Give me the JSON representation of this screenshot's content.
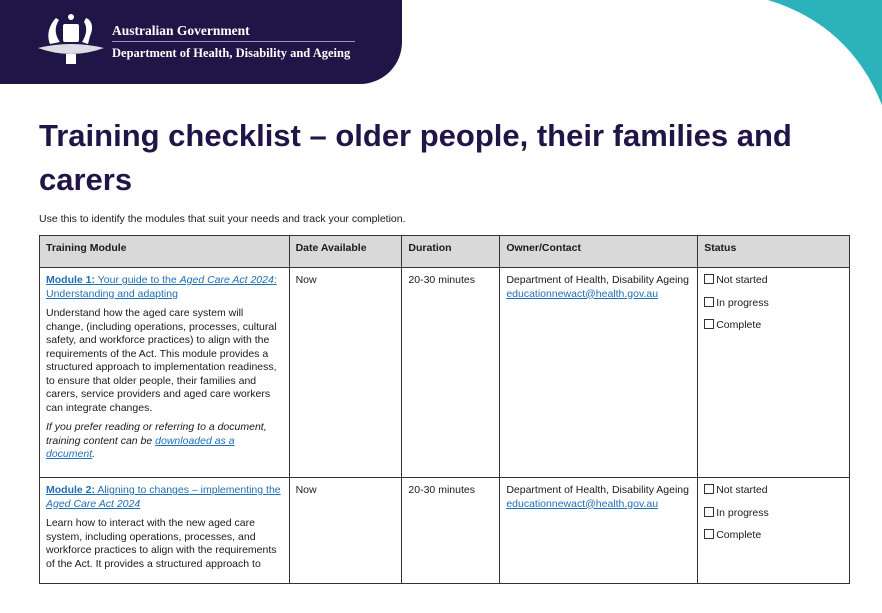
{
  "header": {
    "government": "Australian Government",
    "department": "Department of Health, Disability and Ageing",
    "colors": {
      "banner": "#201547",
      "accent": "#2cb2bb"
    }
  },
  "title": "Training checklist – older people, their families and carers",
  "intro": "Use this to identify the modules that suit your needs and track your completion.",
  "table": {
    "columns": [
      "Training Module",
      "Date Available",
      "Duration",
      "Owner/Contact",
      "Status"
    ],
    "rows": [
      {
        "module_prefix": "Module 1:",
        "module_link_a": " Your guide to the ",
        "module_link_italic": "Aged Care Act 2024",
        "module_link_b": ": Understanding and adapting",
        "description": "Understand how the aged care system will change, (including operations, processes, cultural safety, and workforce practices) to align with the requirements of the Act. This module provides a structured approach to implementation readiness, to ensure that older people, their families and carers, service providers and aged care workers can integrate changes.",
        "note_pre": "If you prefer reading or referring to a document, training content can be ",
        "note_link": "downloaded as a document",
        "note_post": ".",
        "date": "Now",
        "duration": "20-30 minutes",
        "owner": "Department of Health, Disability Ageing",
        "email": "educationnewact@health.gov.au",
        "status": [
          "Not started",
          "In progress",
          "Complete"
        ]
      },
      {
        "module_prefix": "Module 2:",
        "module_link_a": " Aligning to changes – implementing the ",
        "module_link_italic": "Aged Care Act 2024",
        "module_link_b": "",
        "description": "Learn how to interact with the new aged care system, including operations, processes, and workforce practices to align with the requirements of the Act. It provides a structured approach to",
        "date": "Now",
        "duration": "20-30 minutes",
        "owner": "Department of Health, Disability Ageing",
        "email": "educationnewact@health.gov.au",
        "status": [
          "Not started",
          "In progress",
          "Complete"
        ]
      }
    ]
  }
}
